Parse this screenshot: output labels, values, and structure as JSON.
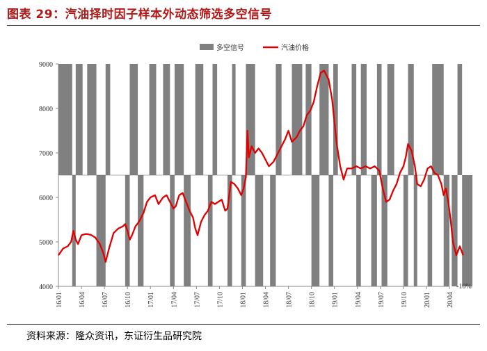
{
  "figure": {
    "title": "图表 29：汽油择时因子样本外动态筛选多空信号",
    "source": "资料来源：隆众资讯，东证衍生品研究院"
  },
  "colors": {
    "title": "#b01818",
    "signal": "#808080",
    "price": "#e00000",
    "axis": "#888888"
  },
  "chart_data": {
    "type": "line",
    "title": "",
    "series": [
      {
        "name": "多空信号",
        "kind": "area-step",
        "description_values": "1 = long (bar up to 9000), -1 = short (bar down to 4000), at -10% base line"
      },
      {
        "name": "汽油价格",
        "kind": "line"
      }
    ],
    "y_left": {
      "min": 4000,
      "max": 9000,
      "ticks": [
        4000,
        5000,
        6000,
        7000,
        8000,
        9000
      ]
    },
    "y_right_label": "-10%",
    "x_ticks": [
      "16/01",
      "16/04",
      "16/07",
      "16/10",
      "17/01",
      "17/04",
      "17/07",
      "17/10",
      "18/01",
      "18/04",
      "18/07",
      "18/10",
      "19/01",
      "19/04",
      "19/07",
      "19/10",
      "20/01",
      "20/04"
    ],
    "signal_intervals": [
      {
        "from": 0.0,
        "to": 0.6,
        "state": 1
      },
      {
        "from": 0.6,
        "to": 0.75,
        "state": -1
      },
      {
        "from": 0.75,
        "to": 1.05,
        "state": 1
      },
      {
        "from": 1.05,
        "to": 1.25,
        "state": 0
      },
      {
        "from": 1.25,
        "to": 1.65,
        "state": 1
      },
      {
        "from": 1.65,
        "to": 2.05,
        "state": -1
      },
      {
        "from": 2.05,
        "to": 2.25,
        "state": 1
      },
      {
        "from": 2.25,
        "to": 2.9,
        "state": 0
      },
      {
        "from": 2.9,
        "to": 3.1,
        "state": -1
      },
      {
        "from": 3.1,
        "to": 3.45,
        "state": 1
      },
      {
        "from": 3.45,
        "to": 3.7,
        "state": -1
      },
      {
        "from": 3.7,
        "to": 3.95,
        "state": 0
      },
      {
        "from": 3.95,
        "to": 4.25,
        "state": 1
      },
      {
        "from": 4.25,
        "to": 4.55,
        "state": 0
      },
      {
        "from": 4.55,
        "to": 4.85,
        "state": 1
      },
      {
        "from": 4.85,
        "to": 5.05,
        "state": -1
      },
      {
        "from": 5.05,
        "to": 5.45,
        "state": 1
      },
      {
        "from": 5.45,
        "to": 5.75,
        "state": -1
      },
      {
        "from": 5.75,
        "to": 5.95,
        "state": 0
      },
      {
        "from": 5.95,
        "to": 6.3,
        "state": 1
      },
      {
        "from": 6.3,
        "to": 6.5,
        "state": 0
      },
      {
        "from": 6.5,
        "to": 6.7,
        "state": -1
      },
      {
        "from": 6.7,
        "to": 6.9,
        "state": 1
      },
      {
        "from": 6.9,
        "to": 7.35,
        "state": 0
      },
      {
        "from": 7.35,
        "to": 7.55,
        "state": -1
      },
      {
        "from": 7.55,
        "to": 7.7,
        "state": 1
      },
      {
        "from": 7.7,
        "to": 7.95,
        "state": 0
      },
      {
        "from": 7.95,
        "to": 8.15,
        "state": -1
      },
      {
        "from": 8.15,
        "to": 8.55,
        "state": 1
      },
      {
        "from": 8.55,
        "to": 8.9,
        "state": -1
      },
      {
        "from": 8.9,
        "to": 9.2,
        "state": 0
      },
      {
        "from": 9.2,
        "to": 9.45,
        "state": -1
      },
      {
        "from": 9.45,
        "to": 9.7,
        "state": 1
      },
      {
        "from": 9.7,
        "to": 10.15,
        "state": 0
      },
      {
        "from": 10.15,
        "to": 10.6,
        "state": 1
      },
      {
        "from": 10.6,
        "to": 10.75,
        "state": 0
      },
      {
        "from": 10.75,
        "to": 11.0,
        "state": 1
      },
      {
        "from": 11.0,
        "to": 11.35,
        "state": -1
      },
      {
        "from": 11.35,
        "to": 11.75,
        "state": 1
      },
      {
        "from": 11.75,
        "to": 11.95,
        "state": -1
      },
      {
        "from": 11.95,
        "to": 12.15,
        "state": 1
      },
      {
        "from": 12.15,
        "to": 12.75,
        "state": 0
      },
      {
        "from": 12.75,
        "to": 12.95,
        "state": 1
      },
      {
        "from": 12.95,
        "to": 13.15,
        "state": -1
      },
      {
        "from": 13.15,
        "to": 13.4,
        "state": 1
      },
      {
        "from": 13.4,
        "to": 13.6,
        "state": 0
      },
      {
        "from": 13.6,
        "to": 13.85,
        "state": -1
      },
      {
        "from": 13.85,
        "to": 14.05,
        "state": 1
      },
      {
        "from": 14.05,
        "to": 14.3,
        "state": -1
      },
      {
        "from": 14.3,
        "to": 14.6,
        "state": 1
      },
      {
        "from": 14.6,
        "to": 15.0,
        "state": 0
      },
      {
        "from": 15.0,
        "to": 15.2,
        "state": -1
      },
      {
        "from": 15.2,
        "to": 15.45,
        "state": 1
      },
      {
        "from": 15.45,
        "to": 15.6,
        "state": -1
      },
      {
        "from": 15.6,
        "to": 16.05,
        "state": 0
      },
      {
        "from": 16.05,
        "to": 16.25,
        "state": -1
      },
      {
        "from": 16.25,
        "to": 16.75,
        "state": 1
      },
      {
        "from": 16.75,
        "to": 17.0,
        "state": -1
      },
      {
        "from": 17.0,
        "to": 17.1,
        "state": 0
      },
      {
        "from": 17.1,
        "to": 17.35,
        "state": -1
      },
      {
        "from": 17.35,
        "to": 17.55,
        "state": 1
      },
      {
        "from": 17.55,
        "to": 18.0,
        "state": -1
      }
    ],
    "price": [
      [
        0.0,
        4700
      ],
      [
        0.2,
        4850
      ],
      [
        0.4,
        4900
      ],
      [
        0.55,
        5000
      ],
      [
        0.65,
        5250
      ],
      [
        0.75,
        5050
      ],
      [
        0.85,
        4950
      ],
      [
        1.0,
        5150
      ],
      [
        1.2,
        5180
      ],
      [
        1.4,
        5160
      ],
      [
        1.6,
        5100
      ],
      [
        1.8,
        4950
      ],
      [
        1.95,
        4750
      ],
      [
        2.05,
        4550
      ],
      [
        2.2,
        4850
      ],
      [
        2.4,
        5200
      ],
      [
        2.6,
        5300
      ],
      [
        2.8,
        5350
      ],
      [
        2.9,
        5400
      ],
      [
        3.0,
        5250
      ],
      [
        3.1,
        5050
      ],
      [
        3.2,
        5150
      ],
      [
        3.35,
        5350
      ],
      [
        3.5,
        5450
      ],
      [
        3.7,
        5650
      ],
      [
        3.85,
        5900
      ],
      [
        4.0,
        6000
      ],
      [
        4.2,
        6050
      ],
      [
        4.35,
        5850
      ],
      [
        4.55,
        6000
      ],
      [
        4.7,
        6050
      ],
      [
        4.85,
        5900
      ],
      [
        5.0,
        5750
      ],
      [
        5.1,
        5800
      ],
      [
        5.25,
        6050
      ],
      [
        5.4,
        6100
      ],
      [
        5.55,
        5900
      ],
      [
        5.7,
        5700
      ],
      [
        5.85,
        5550
      ],
      [
        5.95,
        5300
      ],
      [
        6.05,
        5150
      ],
      [
        6.2,
        5450
      ],
      [
        6.35,
        5600
      ],
      [
        6.5,
        5700
      ],
      [
        6.65,
        5900
      ],
      [
        6.8,
        5850
      ],
      [
        6.95,
        5900
      ],
      [
        7.1,
        5950
      ],
      [
        7.25,
        5700
      ],
      [
        7.35,
        5750
      ],
      [
        7.5,
        6350
      ],
      [
        7.65,
        6300
      ],
      [
        7.8,
        6200
      ],
      [
        7.95,
        6050
      ],
      [
        8.05,
        6200
      ],
      [
        8.15,
        6450
      ],
      [
        8.22,
        7500
      ],
      [
        8.28,
        6900
      ],
      [
        8.4,
        7150
      ],
      [
        8.55,
        7000
      ],
      [
        8.7,
        7100
      ],
      [
        8.85,
        7000
      ],
      [
        9.0,
        6850
      ],
      [
        9.15,
        6700
      ],
      [
        9.35,
        6800
      ],
      [
        9.55,
        7000
      ],
      [
        9.7,
        7150
      ],
      [
        9.85,
        7300
      ],
      [
        10.0,
        7500
      ],
      [
        10.15,
        7250
      ],
      [
        10.35,
        7350
      ],
      [
        10.5,
        7500
      ],
      [
        10.65,
        7600
      ],
      [
        10.8,
        7850
      ],
      [
        10.95,
        7950
      ],
      [
        11.1,
        8150
      ],
      [
        11.25,
        8500
      ],
      [
        11.4,
        8800
      ],
      [
        11.55,
        8850
      ],
      [
        11.75,
        8650
      ],
      [
        11.9,
        8200
      ],
      [
        12.0,
        7700
      ],
      [
        12.1,
        7200
      ],
      [
        12.25,
        6700
      ],
      [
        12.4,
        6400
      ],
      [
        12.55,
        6650
      ],
      [
        12.75,
        6650
      ],
      [
        12.95,
        6700
      ],
      [
        13.15,
        6650
      ],
      [
        13.35,
        6700
      ],
      [
        13.55,
        6650
      ],
      [
        13.75,
        6700
      ],
      [
        13.95,
        6600
      ],
      [
        14.1,
        6200
      ],
      [
        14.25,
        5900
      ],
      [
        14.4,
        5950
      ],
      [
        14.55,
        6150
      ],
      [
        14.7,
        6300
      ],
      [
        14.85,
        6550
      ],
      [
        15.0,
        6700
      ],
      [
        15.1,
        6900
      ],
      [
        15.2,
        7200
      ],
      [
        15.35,
        7050
      ],
      [
        15.5,
        6700
      ],
      [
        15.6,
        6300
      ],
      [
        15.75,
        6250
      ],
      [
        15.9,
        6400
      ],
      [
        16.05,
        6650
      ],
      [
        16.2,
        6700
      ],
      [
        16.35,
        6550
      ],
      [
        16.5,
        6500
      ],
      [
        16.65,
        6300
      ],
      [
        16.75,
        6050
      ],
      [
        16.85,
        6200
      ],
      [
        16.95,
        5900
      ],
      [
        17.05,
        5500
      ],
      [
        17.15,
        5000
      ],
      [
        17.3,
        4700
      ],
      [
        17.45,
        4900
      ],
      [
        17.6,
        4700
      ]
    ],
    "legend_position": "top-center"
  }
}
